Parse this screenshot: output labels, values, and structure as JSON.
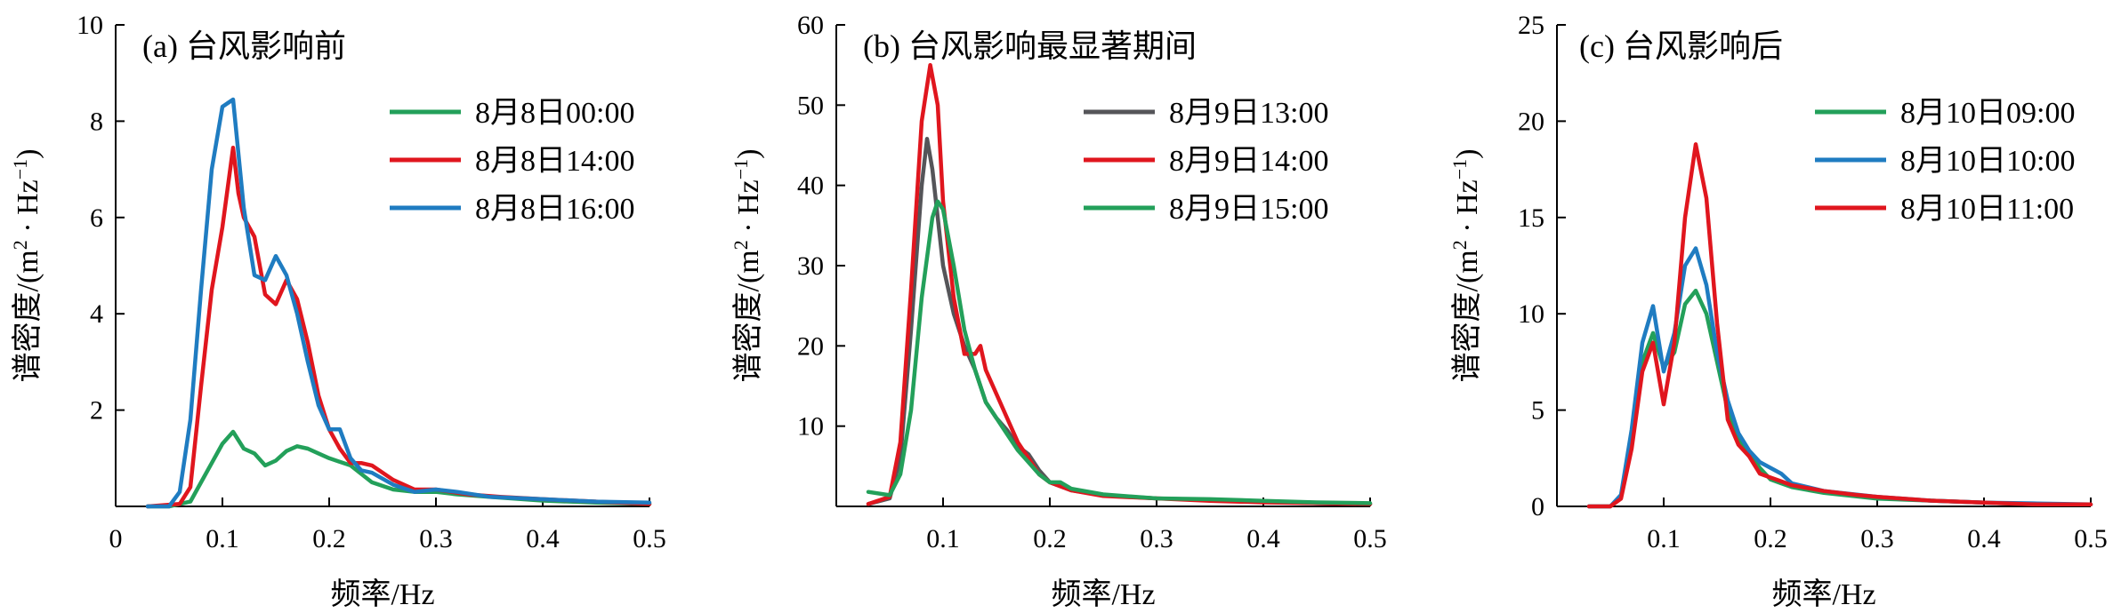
{
  "chart_data": [
    {
      "type": "line",
      "title": "(a) 台风影响前",
      "xlabel": "频率/Hz",
      "ylabel_main": "谱密度/(m",
      "ylabel_sup1": "2",
      "ylabel_mid": " · Hz",
      "ylabel_sup2": "−1",
      "ylabel_end": ")",
      "xlim": [
        0,
        0.5
      ],
      "ylim": [
        0,
        10
      ],
      "xticks": [
        0,
        0.1,
        0.2,
        0.3,
        0.4,
        0.5
      ],
      "xtick_labels": [
        "0",
        "0.1",
        "0.2",
        "0.3",
        "0.4",
        "0.5"
      ],
      "yticks": [
        2,
        4,
        6,
        8,
        10
      ],
      "ytick_labels": [
        "2",
        "4",
        "6",
        "8",
        "10"
      ],
      "grid": false,
      "legend": "top-right",
      "series": [
        {
          "name": "8月8日00:00",
          "color": "#23a05a",
          "points": [
            [
              0.03,
              0
            ],
            [
              0.05,
              0
            ],
            [
              0.07,
              0.1
            ],
            [
              0.08,
              0.5
            ],
            [
              0.09,
              0.9
            ],
            [
              0.1,
              1.3
            ],
            [
              0.11,
              1.55
            ],
            [
              0.12,
              1.2
            ],
            [
              0.13,
              1.1
            ],
            [
              0.14,
              0.85
            ],
            [
              0.15,
              0.95
            ],
            [
              0.16,
              1.15
            ],
            [
              0.17,
              1.25
            ],
            [
              0.18,
              1.2
            ],
            [
              0.19,
              1.1
            ],
            [
              0.2,
              1.0
            ],
            [
              0.22,
              0.85
            ],
            [
              0.24,
              0.5
            ],
            [
              0.26,
              0.35
            ],
            [
              0.28,
              0.3
            ],
            [
              0.3,
              0.3
            ],
            [
              0.32,
              0.25
            ],
            [
              0.35,
              0.2
            ],
            [
              0.4,
              0.12
            ],
            [
              0.45,
              0.08
            ],
            [
              0.5,
              0.05
            ]
          ]
        },
        {
          "name": "8月8日14:00",
          "color": "#e0161e",
          "points": [
            [
              0.03,
              0
            ],
            [
              0.06,
              0.05
            ],
            [
              0.07,
              0.4
            ],
            [
              0.08,
              2.5
            ],
            [
              0.09,
              4.5
            ],
            [
              0.1,
              5.8
            ],
            [
              0.11,
              7.45
            ],
            [
              0.115,
              6.5
            ],
            [
              0.12,
              6.0
            ],
            [
              0.13,
              5.6
            ],
            [
              0.14,
              4.4
            ],
            [
              0.15,
              4.2
            ],
            [
              0.16,
              4.7
            ],
            [
              0.17,
              4.3
            ],
            [
              0.18,
              3.4
            ],
            [
              0.19,
              2.3
            ],
            [
              0.2,
              1.6
            ],
            [
              0.21,
              1.2
            ],
            [
              0.22,
              0.9
            ],
            [
              0.23,
              0.9
            ],
            [
              0.24,
              0.85
            ],
            [
              0.26,
              0.55
            ],
            [
              0.28,
              0.35
            ],
            [
              0.3,
              0.35
            ],
            [
              0.33,
              0.25
            ],
            [
              0.36,
              0.2
            ],
            [
              0.4,
              0.15
            ],
            [
              0.45,
              0.1
            ],
            [
              0.5,
              0.05
            ]
          ]
        },
        {
          "name": "8月8日16:00",
          "color": "#1f7cc1",
          "points": [
            [
              0.03,
              0
            ],
            [
              0.05,
              0
            ],
            [
              0.06,
              0.3
            ],
            [
              0.07,
              1.8
            ],
            [
              0.08,
              4.5
            ],
            [
              0.09,
              7.0
            ],
            [
              0.1,
              8.3
            ],
            [
              0.11,
              8.45
            ],
            [
              0.12,
              6.2
            ],
            [
              0.13,
              4.8
            ],
            [
              0.14,
              4.7
            ],
            [
              0.15,
              5.2
            ],
            [
              0.16,
              4.8
            ],
            [
              0.17,
              4.0
            ],
            [
              0.18,
              3.0
            ],
            [
              0.19,
              2.1
            ],
            [
              0.2,
              1.6
            ],
            [
              0.21,
              1.6
            ],
            [
              0.22,
              1.0
            ],
            [
              0.23,
              0.75
            ],
            [
              0.24,
              0.7
            ],
            [
              0.26,
              0.45
            ],
            [
              0.28,
              0.3
            ],
            [
              0.3,
              0.35
            ],
            [
              0.32,
              0.3
            ],
            [
              0.35,
              0.2
            ],
            [
              0.4,
              0.15
            ],
            [
              0.45,
              0.1
            ],
            [
              0.5,
              0.08
            ]
          ]
        }
      ]
    },
    {
      "type": "line",
      "title": "(b) 台风影响最显著期间",
      "xlabel": "频率/Hz",
      "ylabel_main": "谱密度/(m",
      "ylabel_sup1": "2",
      "ylabel_mid": " · Hz",
      "ylabel_sup2": "−1",
      "ylabel_end": ")",
      "xlim": [
        0,
        0.5
      ],
      "ylim": [
        0,
        60
      ],
      "xticks": [
        0.1,
        0.2,
        0.3,
        0.4,
        0.5
      ],
      "xtick_labels": [
        "0.1",
        "0.2",
        "0.3",
        "0.4",
        "0.5"
      ],
      "yticks": [
        10,
        20,
        30,
        40,
        50,
        60
      ],
      "ytick_labels": [
        "10",
        "20",
        "30",
        "40",
        "50",
        "60"
      ],
      "grid": false,
      "legend": "top-right",
      "series": [
        {
          "name": "8月9日13:00",
          "color": "#555559",
          "points": [
            [
              0.03,
              0.3
            ],
            [
              0.05,
              1.0
            ],
            [
              0.06,
              6
            ],
            [
              0.07,
              22
            ],
            [
              0.08,
              40
            ],
            [
              0.085,
              45.8
            ],
            [
              0.09,
              42
            ],
            [
              0.1,
              30
            ],
            [
              0.11,
              24
            ],
            [
              0.12,
              20
            ],
            [
              0.13,
              17
            ],
            [
              0.14,
              13
            ],
            [
              0.15,
              11
            ],
            [
              0.16,
              9.5
            ],
            [
              0.17,
              7.5
            ],
            [
              0.18,
              6.5
            ],
            [
              0.19,
              4.5
            ],
            [
              0.2,
              3.0
            ],
            [
              0.21,
              2.5
            ],
            [
              0.22,
              2.0
            ],
            [
              0.25,
              1.4
            ],
            [
              0.3,
              1.0
            ],
            [
              0.35,
              0.8
            ],
            [
              0.4,
              0.6
            ],
            [
              0.45,
              0.4
            ],
            [
              0.5,
              0.3
            ]
          ]
        },
        {
          "name": "8月9日14:00",
          "color": "#e0161e",
          "points": [
            [
              0.03,
              0.3
            ],
            [
              0.05,
              1.2
            ],
            [
              0.06,
              8
            ],
            [
              0.07,
              27
            ],
            [
              0.08,
              48
            ],
            [
              0.088,
              55
            ],
            [
              0.095,
              50
            ],
            [
              0.1,
              38
            ],
            [
              0.11,
              26
            ],
            [
              0.12,
              19
            ],
            [
              0.13,
              19
            ],
            [
              0.135,
              20
            ],
            [
              0.14,
              17
            ],
            [
              0.15,
              14
            ],
            [
              0.16,
              11
            ],
            [
              0.17,
              8
            ],
            [
              0.18,
              6
            ],
            [
              0.19,
              4
            ],
            [
              0.2,
              3.0
            ],
            [
              0.21,
              2.5
            ],
            [
              0.22,
              2.0
            ],
            [
              0.25,
              1.3
            ],
            [
              0.3,
              1.0
            ],
            [
              0.35,
              0.7
            ],
            [
              0.4,
              0.5
            ],
            [
              0.45,
              0.4
            ],
            [
              0.5,
              0.3
            ]
          ]
        },
        {
          "name": "8月9日15:00",
          "color": "#23a05a",
          "points": [
            [
              0.03,
              1.8
            ],
            [
              0.05,
              1.4
            ],
            [
              0.06,
              4
            ],
            [
              0.07,
              12
            ],
            [
              0.08,
              26
            ],
            [
              0.09,
              36
            ],
            [
              0.095,
              38
            ],
            [
              0.1,
              37
            ],
            [
              0.11,
              30
            ],
            [
              0.12,
              22
            ],
            [
              0.13,
              17
            ],
            [
              0.14,
              13
            ],
            [
              0.15,
              11
            ],
            [
              0.16,
              9
            ],
            [
              0.17,
              7
            ],
            [
              0.18,
              5.5
            ],
            [
              0.19,
              4
            ],
            [
              0.2,
              3.0
            ],
            [
              0.21,
              3.0
            ],
            [
              0.22,
              2.2
            ],
            [
              0.25,
              1.5
            ],
            [
              0.3,
              1.0
            ],
            [
              0.35,
              0.9
            ],
            [
              0.4,
              0.7
            ],
            [
              0.45,
              0.5
            ],
            [
              0.5,
              0.4
            ]
          ]
        }
      ]
    },
    {
      "type": "line",
      "title": "(c) 台风影响后",
      "xlabel": "频率/Hz",
      "ylabel_main": "谱密度/(m",
      "ylabel_sup1": "2",
      "ylabel_mid": " · Hz",
      "ylabel_sup2": "−1",
      "ylabel_end": ")",
      "xlim": [
        0,
        0.5
      ],
      "ylim": [
        0,
        25
      ],
      "xticks": [
        0.1,
        0.2,
        0.3,
        0.4,
        0.5
      ],
      "xtick_labels": [
        "0.1",
        "0.2",
        "0.3",
        "0.4",
        "0.5"
      ],
      "yticks": [
        0,
        5,
        10,
        15,
        20,
        25
      ],
      "ytick_labels": [
        "0",
        "5",
        "10",
        "15",
        "20",
        "25"
      ],
      "grid": false,
      "legend": "top-right",
      "series": [
        {
          "name": "8月10日09:00",
          "color": "#23a05a",
          "points": [
            [
              0.03,
              0
            ],
            [
              0.05,
              0
            ],
            [
              0.06,
              0.5
            ],
            [
              0.07,
              3.5
            ],
            [
              0.08,
              7.5
            ],
            [
              0.09,
              9.0
            ],
            [
              0.1,
              7.2
            ],
            [
              0.11,
              8.0
            ],
            [
              0.12,
              10.5
            ],
            [
              0.13,
              11.2
            ],
            [
              0.14,
              10.0
            ],
            [
              0.15,
              7.5
            ],
            [
              0.16,
              5.0
            ],
            [
              0.17,
              3.5
            ],
            [
              0.18,
              2.8
            ],
            [
              0.19,
              2.0
            ],
            [
              0.2,
              1.4
            ],
            [
              0.21,
              1.2
            ],
            [
              0.22,
              1.0
            ],
            [
              0.25,
              0.7
            ],
            [
              0.3,
              0.4
            ],
            [
              0.35,
              0.3
            ],
            [
              0.4,
              0.2
            ],
            [
              0.45,
              0.1
            ],
            [
              0.5,
              0.1
            ]
          ]
        },
        {
          "name": "8月10日10:00",
          "color": "#1f7cc1",
          "points": [
            [
              0.03,
              0
            ],
            [
              0.05,
              0
            ],
            [
              0.06,
              0.6
            ],
            [
              0.07,
              4.0
            ],
            [
              0.08,
              8.5
            ],
            [
              0.09,
              10.4
            ],
            [
              0.1,
              7.0
            ],
            [
              0.11,
              9.0
            ],
            [
              0.12,
              12.5
            ],
            [
              0.13,
              13.4
            ],
            [
              0.14,
              11.5
            ],
            [
              0.15,
              8.0
            ],
            [
              0.16,
              5.5
            ],
            [
              0.17,
              3.8
            ],
            [
              0.18,
              2.9
            ],
            [
              0.19,
              2.3
            ],
            [
              0.2,
              2.0
            ],
            [
              0.21,
              1.7
            ],
            [
              0.22,
              1.2
            ],
            [
              0.25,
              0.8
            ],
            [
              0.3,
              0.5
            ],
            [
              0.35,
              0.3
            ],
            [
              0.4,
              0.2
            ],
            [
              0.45,
              0.15
            ],
            [
              0.5,
              0.1
            ]
          ]
        },
        {
          "name": "8月10日11:00",
          "color": "#e0161e",
          "points": [
            [
              0.03,
              0
            ],
            [
              0.05,
              0
            ],
            [
              0.06,
              0.4
            ],
            [
              0.07,
              3.0
            ],
            [
              0.08,
              7.0
            ],
            [
              0.09,
              8.5
            ],
            [
              0.1,
              5.3
            ],
            [
              0.11,
              8.5
            ],
            [
              0.12,
              15.0
            ],
            [
              0.13,
              18.8
            ],
            [
              0.14,
              16.0
            ],
            [
              0.15,
              9.5
            ],
            [
              0.16,
              4.5
            ],
            [
              0.17,
              3.2
            ],
            [
              0.18,
              2.6
            ],
            [
              0.19,
              1.7
            ],
            [
              0.2,
              1.5
            ],
            [
              0.21,
              1.3
            ],
            [
              0.22,
              1.1
            ],
            [
              0.25,
              0.8
            ],
            [
              0.28,
              0.6
            ],
            [
              0.3,
              0.5
            ],
            [
              0.35,
              0.3
            ],
            [
              0.4,
              0.2
            ],
            [
              0.45,
              0.1
            ],
            [
              0.5,
              0.1
            ]
          ]
        }
      ]
    }
  ]
}
